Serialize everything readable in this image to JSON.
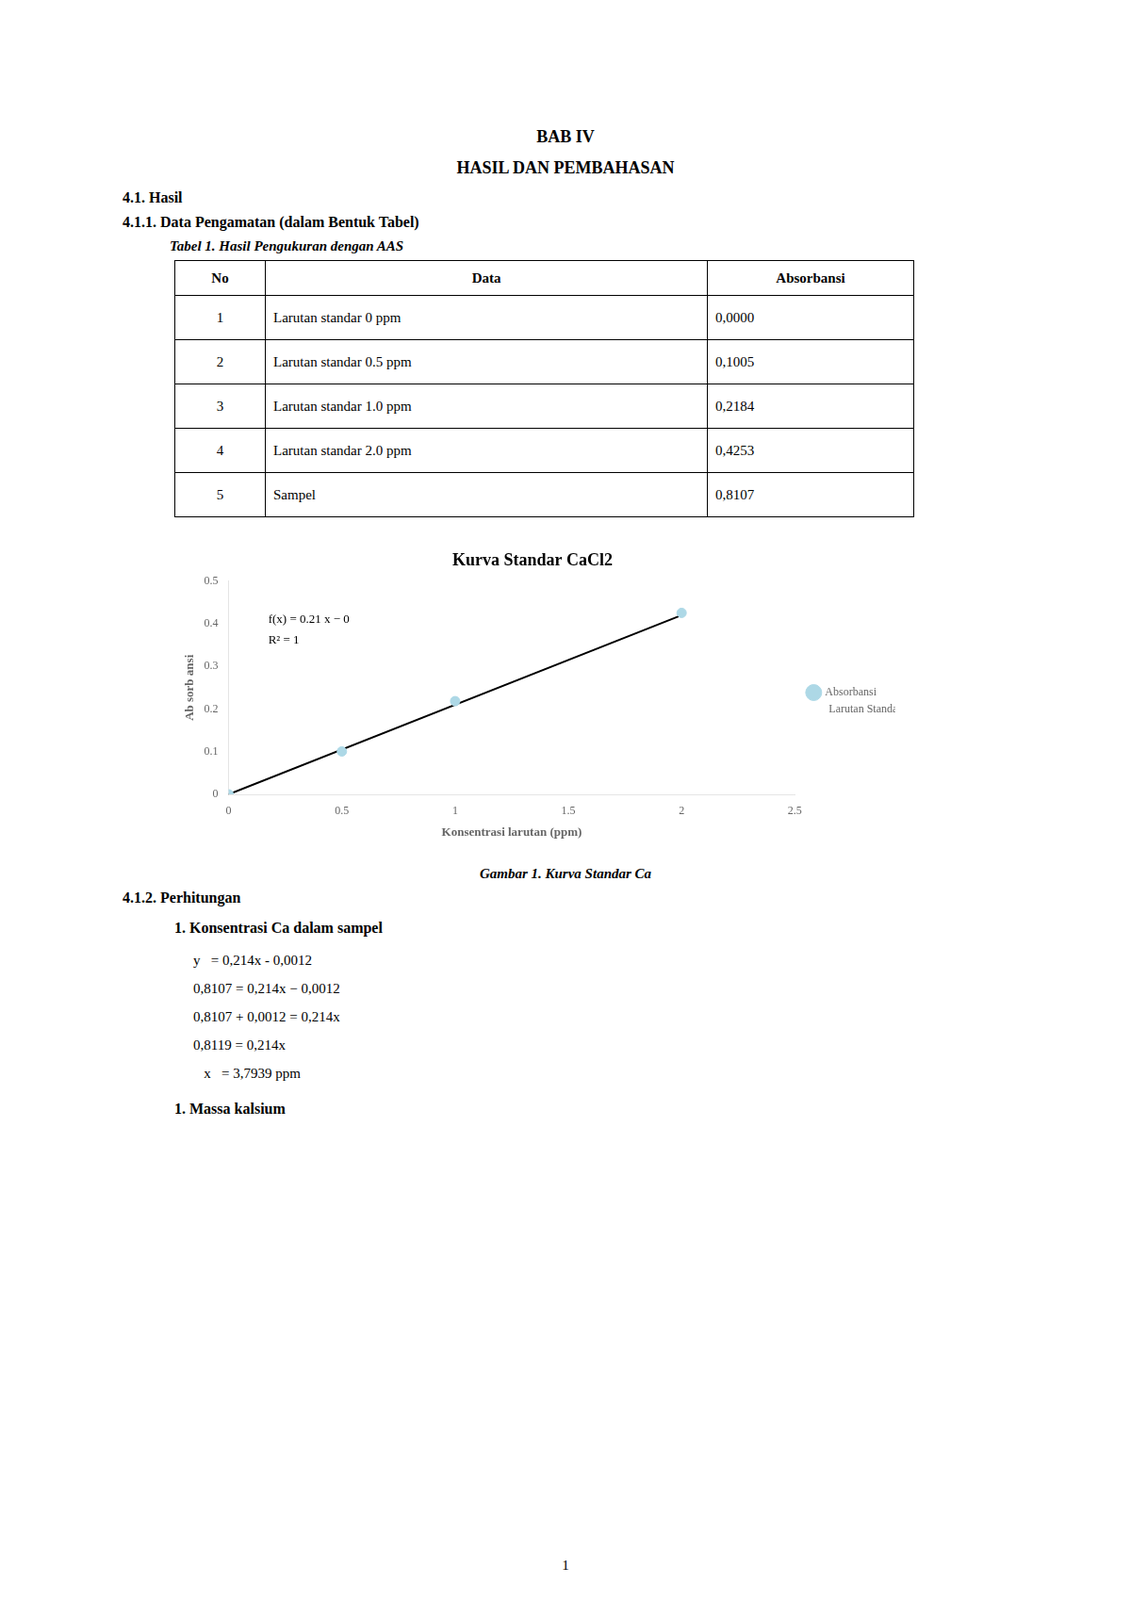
{
  "page": {
    "titles": [
      "BAB IV",
      "HASIL DAN PEMBAHASAN"
    ],
    "sections_top": [
      "4.1. Hasil",
      "4.1.1. Data Pengamatan (dalam Bentuk Tabel)"
    ],
    "table_caption": "Tabel 1. Hasil Pengukuran dengan AAS",
    "table": {
      "headers": [
        "No",
        "Data",
        "Absorbansi"
      ],
      "rows": [
        [
          "1",
          "Larutan standar 0 ppm",
          "0,0000"
        ],
        [
          "2",
          "Larutan standar 0.5 ppm",
          "0,1005"
        ],
        [
          "3",
          "Larutan standar 1.0 ppm",
          "0,2184"
        ],
        [
          "4",
          "Larutan standar 2.0 ppm",
          "0,4253"
        ],
        [
          "5",
          "Sampel",
          "0,8107"
        ]
      ]
    },
    "figure_caption": "Gambar 1. Kurva Standar Ca",
    "section_calc": "4.1.2. Perhitungan",
    "calc_header": "1. Konsentrasi Ca dalam sampel",
    "calc_lines": [
      "y   = 0,214x - 0,0012",
      "0,8107 = 0,214x − 0,0012",
      "0,8107 + 0,0012 = 0,214x",
      "0,8119 = 0,214x",
      "   x   = 3,7939 ppm"
    ],
    "section_last": "1.  Massa kalsium",
    "footer": "1"
  },
  "chart_data": {
    "type": "scatter",
    "title": "Kurva Standar CaCl2",
    "xlabel": "Konsentrasi larutan (ppm)",
    "ylabel": "Ab sorb ansi",
    "series": [
      {
        "name": "Absorbansi",
        "type": "scatter",
        "color": "#add8e6",
        "x": [
          0,
          0.5,
          1.0,
          2.0
        ],
        "values": [
          0.0,
          0.1005,
          0.2184,
          0.4253
        ]
      },
      {
        "type": "line",
        "color": "#000000",
        "x": [
          0.0,
          2.0
        ],
        "values": [
          0.0,
          0.42
        ]
      }
    ],
    "annotations": [
      "f(x) = 0.21 x − 0",
      "R² = 1"
    ],
    "legend_note": "Larutan Standar",
    "legend": "right",
    "grid": false,
    "xlim": [
      0,
      2.5
    ],
    "ylim": [
      0,
      0.5
    ],
    "xticks": [
      0,
      0.5,
      1,
      1.5,
      2,
      2.5
    ],
    "yticks": [
      0,
      0.1,
      0.2,
      0.3,
      0.4,
      0.5
    ]
  }
}
